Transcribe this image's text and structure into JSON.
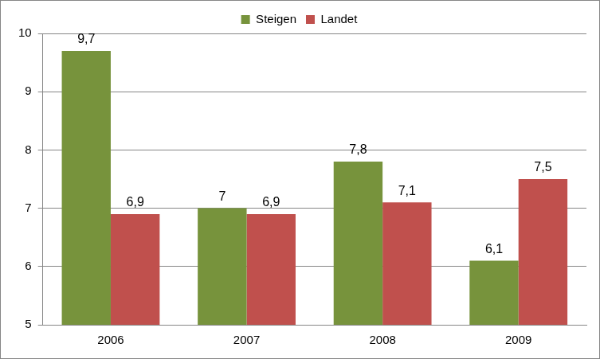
{
  "chart_data": {
    "type": "bar",
    "categories": [
      "2006",
      "2007",
      "2008",
      "2009"
    ],
    "series": [
      {
        "name": "Steigen",
        "color": "#77933c",
        "values": [
          9.7,
          7,
          7.8,
          6.1
        ],
        "value_labels": [
          "9,7",
          "7",
          "7,8",
          "6,1"
        ]
      },
      {
        "name": "Landet",
        "color": "#c0504d",
        "values": [
          6.9,
          6.9,
          7.1,
          7.5
        ],
        "value_labels": [
          "6,9",
          "6,9",
          "7,1",
          "7,5"
        ]
      }
    ],
    "ylim": [
      5,
      10
    ],
    "yticks": [
      5,
      6,
      7,
      8,
      9,
      10
    ],
    "grid": true,
    "legend": "top",
    "data_labels": true
  }
}
